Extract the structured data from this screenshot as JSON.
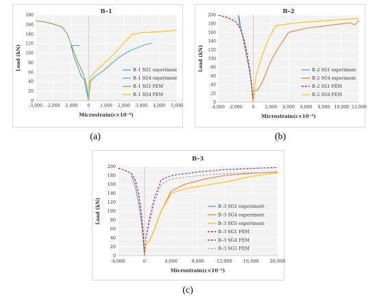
{
  "captions": [
    "(a)",
    "(b)",
    "(c)"
  ],
  "chart_data": [
    {
      "type": "line",
      "title": "B–1",
      "xlabel": "Microstrain(ε×10⁻⁶)",
      "ylabel": "Load (kN)",
      "xlim": [
        -3000,
        5000
      ],
      "ylim": [
        0,
        180
      ],
      "xticks": [
        -3000,
        -2000,
        -1000,
        0,
        1000,
        2000,
        3000,
        4000,
        5000
      ],
      "xtick_labels": [
        "-3,000",
        "-2,000",
        "-1,000",
        "0",
        "1,000",
        "2,000",
        "3,000",
        "4,000",
        "5,000"
      ],
      "yticks": [
        0,
        20,
        40,
        60,
        80,
        100,
        120,
        140,
        160,
        180
      ],
      "ytick_labels": [
        "0",
        "20",
        "40",
        "60",
        "80",
        "100",
        "120",
        "140",
        "160",
        "180"
      ],
      "grid": true,
      "legend_position": "right",
      "series": [
        {
          "name": "B–1 SG1 experiment",
          "color": "#5b9bd5",
          "dash": "solid",
          "x": [
            0,
            -150,
            -250,
            -400,
            -550,
            -700,
            -850,
            -950,
            -1000,
            -900,
            -700,
            -500
          ],
          "y": [
            0,
            25,
            45,
            50,
            65,
            80,
            95,
            110,
            115,
            116,
            116,
            116
          ]
        },
        {
          "name": "B–1 SG4 experiment",
          "color": "#4bacc6",
          "dash": "solid",
          "x": [
            0,
            100,
            200,
            400,
            800,
            1200,
            1600,
            2000,
            2400,
            2800,
            3200,
            3600
          ],
          "y": [
            0,
            40,
            45,
            52,
            62,
            75,
            88,
            98,
            106,
            112,
            118,
            121
          ]
        },
        {
          "name": "B–1 SG1 FEM",
          "color": "#70ad47",
          "dash": "solid",
          "x": [
            0,
            -100,
            -200,
            -400,
            -600,
            -800,
            -1000,
            -1200,
            -1500,
            -2000,
            -2500,
            -3000
          ],
          "y": [
            0,
            30,
            45,
            65,
            80,
            100,
            120,
            140,
            155,
            161,
            166,
            168
          ]
        },
        {
          "name": "B–1 SG4 FEM",
          "color": "#ffc000",
          "dash": "solid",
          "x": [
            0,
            50,
            150,
            400,
            800,
            1200,
            1600,
            2000,
            2500,
            3000,
            4000,
            5000
          ],
          "y": [
            0,
            40,
            52,
            62,
            76,
            90,
            105,
            122,
            140,
            143,
            145,
            148
          ]
        }
      ]
    },
    {
      "type": "line",
      "title": "B–2",
      "xlabel": "Microstrain(ε×10⁻⁶)",
      "ylabel": "Load (kN)",
      "xlim": [
        -4000,
        12000
      ],
      "ylim": [
        0,
        200
      ],
      "xticks": [
        -4000,
        -2000,
        0,
        2000,
        4000,
        6000,
        8000,
        10000,
        12000
      ],
      "xtick_labels": [
        "-4,000",
        "-2,000",
        "0",
        "2,000",
        "4,000",
        "6,000",
        "8,000",
        "10,000",
        "12,000"
      ],
      "yticks": [
        0,
        20,
        40,
        60,
        80,
        100,
        120,
        140,
        160,
        180,
        200
      ],
      "ytick_labels": [
        "0",
        "20",
        "40",
        "60",
        "80",
        "100",
        "120",
        "140",
        "160",
        "180",
        "200"
      ],
      "grid": true,
      "legend_position": "right",
      "series": [
        {
          "name": "B–2 SG1 experiment",
          "color": "#5b9bd5",
          "dash": "solid",
          "x": [
            0,
            -200,
            -400,
            -700,
            -1000,
            -1300,
            -1500,
            -1600,
            -1700,
            -1500,
            -1650,
            -1550
          ],
          "y": [
            0,
            40,
            70,
            100,
            130,
            160,
            180,
            195,
            200,
            170,
            190,
            175
          ]
        },
        {
          "name": "B–2 SG4 experiment",
          "color": "#ed7d31",
          "dash": "solid",
          "x": [
            0,
            100,
            500,
            1000,
            2000,
            3000,
            4000,
            6000,
            8000,
            10000,
            11000,
            11500,
            12000
          ],
          "y": [
            0,
            25,
            28,
            45,
            95,
            130,
            160,
            170,
            175,
            180,
            182,
            178,
            188
          ]
        },
        {
          "name": "B–2 SG1 FEM",
          "color": "#c00000",
          "dash": "dashed",
          "x": [
            0,
            -200,
            -400,
            -700,
            -1000,
            -1500,
            -2000,
            -3000,
            -4000
          ],
          "y": [
            0,
            40,
            75,
            110,
            140,
            170,
            185,
            195,
            200
          ]
        },
        {
          "name": "B–2 SG4 FEM",
          "color": "#ffc000",
          "dash": "solid",
          "x": [
            0,
            100,
            300,
            800,
            1500,
            2500,
            4000,
            6000,
            8000,
            10000,
            12000
          ],
          "y": [
            0,
            30,
            60,
            95,
            135,
            175,
            180,
            184,
            187,
            190,
            192
          ]
        }
      ]
    },
    {
      "type": "line",
      "title": "B–3",
      "xlabel": "Microstrain(ε×10⁻⁶)",
      "ylabel": "Load (kN)",
      "xlim": [
        -4000,
        20000
      ],
      "ylim": [
        0,
        200
      ],
      "xticks": [
        -4000,
        0,
        4000,
        8000,
        12000,
        16000,
        20000
      ],
      "xtick_labels": [
        "-4,000",
        "0",
        "4,000",
        "8,000",
        "12,000",
        "16,000",
        "20,000"
      ],
      "yticks": [
        0,
        20,
        40,
        60,
        80,
        100,
        120,
        140,
        160,
        180,
        200
      ],
      "ytick_labels": [
        "0",
        "20",
        "40",
        "60",
        "80",
        "100",
        "120",
        "140",
        "160",
        "180",
        "200"
      ],
      "grid": true,
      "legend_position": "right",
      "series": [
        {
          "name": "B–3 SG1 experiment",
          "color": "#5b9bd5",
          "dash": "solid",
          "x": [
            0,
            -200,
            -500,
            -900,
            -1300,
            -1700,
            -2000
          ],
          "y": [
            0,
            40,
            80,
            120,
            150,
            170,
            180
          ]
        },
        {
          "name": "B–3 SG4 experiment",
          "color": "#ed7d31",
          "dash": "solid",
          "x": [
            0,
            200,
            800,
            1500,
            2500,
            4000,
            6000,
            9000,
            12000,
            16000,
            20000
          ],
          "y": [
            0,
            25,
            35,
            60,
            100,
            145,
            160,
            172,
            180,
            185,
            188
          ]
        },
        {
          "name": "B–3 SG5 experiment",
          "color": "#ffc000",
          "dash": "solid",
          "x": [
            0,
            200,
            800,
            1500,
            2500,
            4000,
            6000,
            9000,
            12000,
            16000,
            20000
          ],
          "y": [
            0,
            25,
            35,
            60,
            100,
            140,
            150,
            158,
            165,
            178,
            186
          ]
        },
        {
          "name": "B–3 SG1 FEM",
          "color": "#c00000",
          "dash": "dashed",
          "x": [
            0,
            -200,
            -500,
            -900,
            -1400,
            -2000,
            -3000,
            -4000
          ],
          "y": [
            0,
            50,
            100,
            140,
            170,
            185,
            192,
            197
          ]
        },
        {
          "name": "B–3 SG4 FEM",
          "color": "#7030a0",
          "dash": "dashed",
          "x": [
            0,
            200,
            700,
            1500,
            2500,
            4000,
            8000,
            12000,
            16000,
            20000
          ],
          "y": [
            0,
            40,
            80,
            130,
            170,
            180,
            188,
            193,
            196,
            198
          ]
        },
        {
          "name": "B–3 SG5 FEM",
          "color": "#a5a5a5",
          "dash": "dashed",
          "x": [
            0,
            200,
            700,
            1500,
            2500,
            4000,
            8000,
            12000,
            16000,
            20000
          ],
          "y": [
            0,
            35,
            70,
            120,
            160,
            172,
            180,
            184,
            186,
            187
          ]
        }
      ]
    }
  ]
}
